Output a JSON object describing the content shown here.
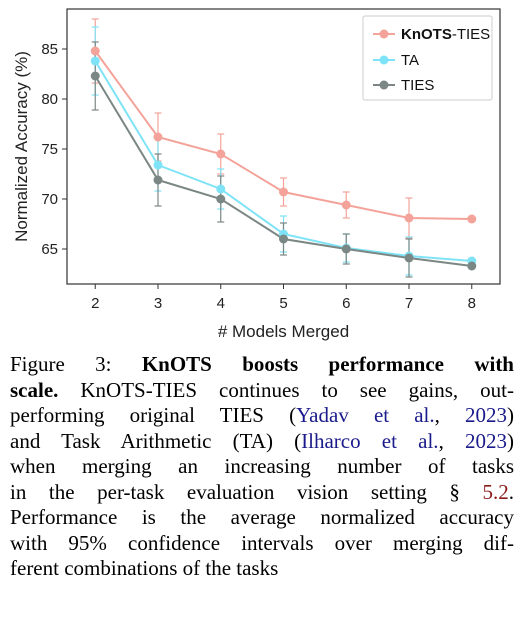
{
  "chart_data": {
    "type": "line",
    "xlabel": "# Models Merged",
    "ylabel": "Normalized Accuracy (%)",
    "x": [
      2,
      3,
      4,
      5,
      6,
      7,
      8
    ],
    "x_ticks": [
      "2",
      "3",
      "4",
      "5",
      "6",
      "7",
      "8"
    ],
    "y_ticks": [
      "65",
      "70",
      "75",
      "80",
      "85"
    ],
    "xlim": [
      1.55,
      8.45
    ],
    "ylim": [
      61.5,
      89.0
    ],
    "grid": false,
    "legend_position": "top-right",
    "series": [
      {
        "name_bold": "KnOTS",
        "name_rest": "-TIES",
        "color": "#f4a39a",
        "values": [
          84.8,
          76.2,
          74.5,
          70.7,
          69.4,
          68.1,
          68.0
        ],
        "err": [
          3.2,
          2.4,
          2.0,
          1.4,
          1.3,
          2.0,
          0.0
        ]
      },
      {
        "name": "TA",
        "color": "#7fe3f7",
        "values": [
          83.8,
          73.4,
          71.0,
          66.5,
          65.1,
          64.3,
          63.8
        ],
        "err": [
          3.4,
          2.6,
          2.0,
          1.8,
          1.4,
          1.9,
          0.0
        ]
      },
      {
        "name": "TIES",
        "color": "#7b8784",
        "values": [
          82.3,
          71.9,
          70.0,
          66.0,
          65.0,
          64.1,
          63.3
        ],
        "err": [
          3.4,
          2.6,
          2.3,
          1.6,
          1.5,
          1.9,
          0.0
        ]
      }
    ]
  },
  "caption": {
    "line1_prefix": "Figure 3: ",
    "line1_bold": "KnOTS boosts performance with",
    "line2_bold": "scale.",
    "line2_rest": " KnOTS-TIES continues to see gains, out-",
    "line3_pre": "performing original TIES (",
    "line3_cite_a": "Yadav et al.",
    "line3_mid": ", ",
    "line3_cite_b": "2023",
    "line3_post": ")",
    "line4_pre": "and Task Arithmetic (TA) (",
    "line4_cite_a": "Ilharco et al.",
    "line4_mid": ", ",
    "line4_cite_b": "2023",
    "line4_post": ")",
    "line5": "when merging an increasing number of tasks",
    "line6_pre": "in the per-task evaluation vision setting § ",
    "line6_ref": "5.2",
    "line6_post": ".",
    "line7": "Performance is the average normalized accuracy",
    "line8": "with 95% confidence intervals over merging dif-",
    "line9": "ferent combinations of the tasks"
  }
}
